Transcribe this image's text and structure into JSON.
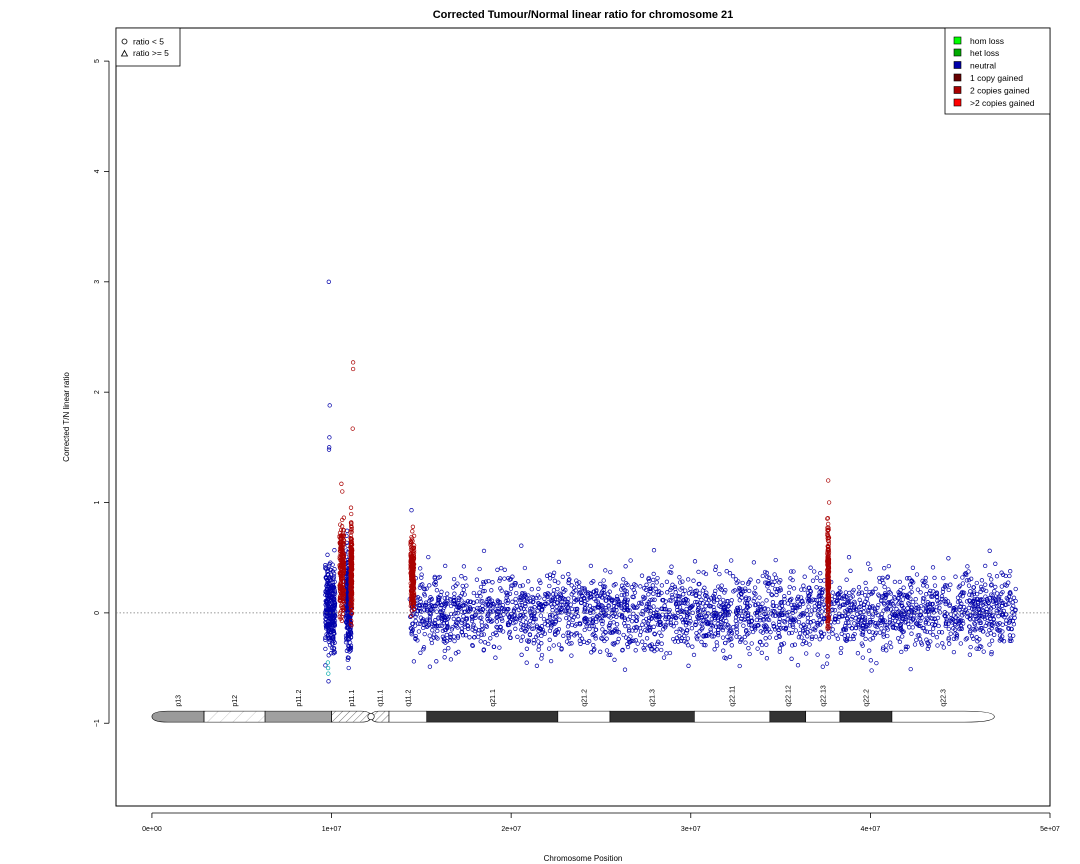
{
  "chart_data": {
    "type": "scatter",
    "title": "Corrected Tumour/Normal linear ratio for chromosome  21",
    "xlabel": "Chromosome Position",
    "ylabel": "Corrected T/N linear ratio",
    "xlim": [
      -2000000,
      50000000
    ],
    "ylim": [
      -1.75,
      5.3
    ],
    "x_ticks": [
      0,
      10000000,
      20000000,
      30000000,
      40000000,
      50000000
    ],
    "x_tick_labels": [
      "0e+00",
      "1e+07",
      "2e+07",
      "3e+07",
      "4e+07",
      "5e+07"
    ],
    "y_ticks": [
      -1,
      0,
      1,
      2,
      3,
      4,
      5
    ],
    "y_tick_labels": [
      "−1",
      "0",
      "1",
      "2",
      "3",
      "4",
      "5"
    ],
    "reference_line_y": 0,
    "shape_legend": {
      "position": "top-left",
      "items": [
        {
          "symbol": "circle",
          "label": "ratio < 5"
        },
        {
          "symbol": "triangle",
          "label": "ratio >= 5"
        }
      ]
    },
    "color_legend": {
      "position": "top-right",
      "items": [
        {
          "label": "hom loss",
          "color": "#00ff00"
        },
        {
          "label": "het loss",
          "color": "#00aa00"
        },
        {
          "label": "neutral",
          "color": "#0000aa"
        },
        {
          "label": "1 copy gained",
          "color": "#660000"
        },
        {
          "label": "2 copies gained",
          "color": "#aa0000"
        },
        {
          "label": ">2 copies gained",
          "color": "#ff0000"
        }
      ]
    },
    "neutral_segments": [
      {
        "x_start": 9650000,
        "x_end": 10200000,
        "mean": 0.05,
        "sd": 0.18
      },
      {
        "x_start": 10800000,
        "x_end": 11100000,
        "mean": 0.1,
        "sd": 0.2
      },
      {
        "x_start": 14350000,
        "x_end": 48100000,
        "mean": 0.0,
        "sd": 0.17
      }
    ],
    "gained_segments": [
      {
        "x_start": 10450000,
        "x_end": 10700000,
        "mean": 0.4,
        "sd": 0.2,
        "color": "#aa0000"
      },
      {
        "x_start": 11050000,
        "x_end": 11150000,
        "mean": 0.4,
        "sd": 0.2,
        "color": "#aa0000"
      },
      {
        "x_start": 14400000,
        "x_end": 14600000,
        "mean": 0.35,
        "sd": 0.15,
        "color": "#aa0000"
      },
      {
        "x_start": 37600000,
        "x_end": 37700000,
        "mean": 0.3,
        "sd": 0.2,
        "color": "#aa0000"
      }
    ],
    "outlier_points": [
      {
        "x": 9850000,
        "y": 3.0,
        "color": "#0000aa"
      },
      {
        "x": 9900000,
        "y": 1.88,
        "color": "#0000aa"
      },
      {
        "x": 9880000,
        "y": 1.59,
        "color": "#0000aa"
      },
      {
        "x": 9870000,
        "y": 1.5,
        "color": "#0000aa"
      },
      {
        "x": 9860000,
        "y": 1.48,
        "color": "#0000aa"
      },
      {
        "x": 11200000,
        "y": 2.27,
        "color": "#aa0000"
      },
      {
        "x": 11200000,
        "y": 2.21,
        "color": "#aa0000"
      },
      {
        "x": 11180000,
        "y": 1.67,
        "color": "#aa0000"
      },
      {
        "x": 10550000,
        "y": 1.17,
        "color": "#aa0000"
      },
      {
        "x": 10600000,
        "y": 1.1,
        "color": "#aa0000"
      },
      {
        "x": 37650000,
        "y": 1.2,
        "color": "#aa0000"
      },
      {
        "x": 37700000,
        "y": 1.0,
        "color": "#aa0000"
      },
      {
        "x": 14450000,
        "y": 0.93,
        "color": "#0000aa"
      },
      {
        "x": 9800000,
        "y": -0.45,
        "color": "#00aaaa"
      },
      {
        "x": 9810000,
        "y": -0.5,
        "color": "#00aaaa"
      },
      {
        "x": 9820000,
        "y": -0.55,
        "color": "#00aaaa"
      },
      {
        "x": 9830000,
        "y": -0.62,
        "color": "#0000aa"
      }
    ],
    "ideogram": {
      "y": -0.94,
      "bands": [
        {
          "name": "p13",
          "start": 0,
          "end": 2900000,
          "fill": "#9a9a9a",
          "shape": "left-end"
        },
        {
          "name": "p12",
          "start": 2900000,
          "end": 6300000,
          "fill": "hatch-light"
        },
        {
          "name": "p11.2",
          "start": 6300000,
          "end": 10000000,
          "fill": "#a0a0a0"
        },
        {
          "name": "p11.1",
          "start": 10000000,
          "end": 12200000,
          "fill": "hatch",
          "shape": "to-centromere"
        },
        {
          "name": "q11.1",
          "start": 12200000,
          "end": 13200000,
          "fill": "hatch",
          "shape": "from-centromere"
        },
        {
          "name": "q11.2",
          "start": 13200000,
          "end": 15300000,
          "fill": "#ffffff"
        },
        {
          "name": "q21.1",
          "start": 15300000,
          "end": 22600000,
          "fill": "#333333"
        },
        {
          "name": "q21.2",
          "start": 22600000,
          "end": 25500000,
          "fill": "#ffffff"
        },
        {
          "name": "q21.3",
          "start": 25500000,
          "end": 30200000,
          "fill": "#333333"
        },
        {
          "name": "q22.11",
          "start": 30200000,
          "end": 34400000,
          "fill": "#ffffff"
        },
        {
          "name": "q22.12",
          "start": 34400000,
          "end": 36400000,
          "fill": "#333333"
        },
        {
          "name": "q22.13",
          "start": 36400000,
          "end": 38300000,
          "fill": "#ffffff"
        },
        {
          "name": "q22.2",
          "start": 38300000,
          "end": 41200000,
          "fill": "#333333"
        },
        {
          "name": "q22.3",
          "start": 41200000,
          "end": 46900000,
          "fill": "#ffffff",
          "shape": "right-end"
        }
      ]
    }
  }
}
